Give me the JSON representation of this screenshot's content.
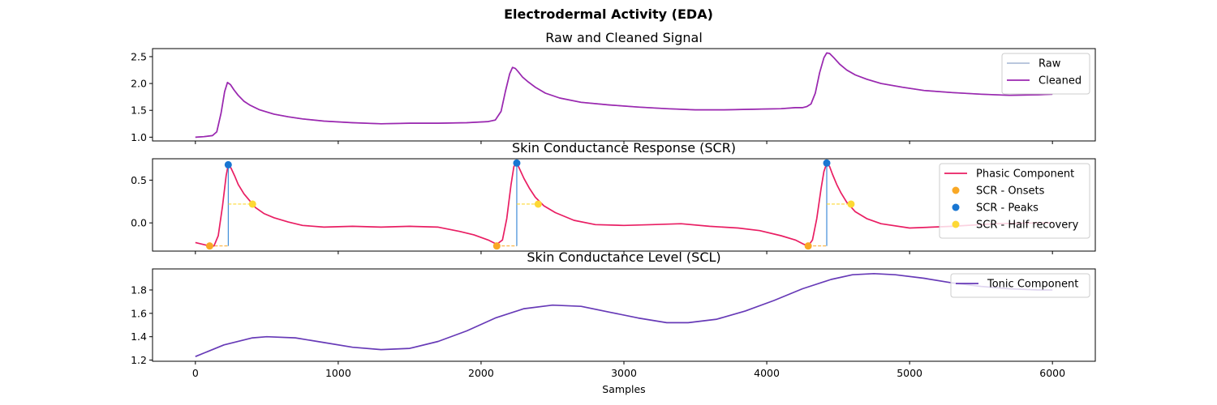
{
  "figure": {
    "title": "Electrodermal Activity (EDA)",
    "xlabel": "Samples"
  },
  "chart_data": [
    {
      "type": "line",
      "title": "Raw and Cleaned Signal",
      "xlim": [
        -300,
        6300
      ],
      "ylim": [
        0.93,
        2.65
      ],
      "yticks": [
        1.0,
        1.5,
        2.0,
        2.5
      ],
      "legend_position": "top-right",
      "series": [
        {
          "name": "Raw",
          "color": "#b0bfd8",
          "x": [
            0,
            60,
            120,
            150,
            180,
            205,
            225,
            245,
            270,
            300,
            340,
            380,
            450,
            550,
            650,
            750,
            900,
            1100,
            1300,
            1500,
            1700,
            1900,
            2050,
            2100,
            2140,
            2170,
            2200,
            2220,
            2240,
            2260,
            2290,
            2330,
            2380,
            2450,
            2550,
            2700,
            2900,
            3100,
            3300,
            3500,
            3700,
            3900,
            4100,
            4200,
            4250,
            4280,
            4310,
            4340,
            4370,
            4400,
            4420,
            4440,
            4470,
            4510,
            4560,
            4620,
            4700,
            4800,
            4950,
            5100,
            5300,
            5500,
            5700,
            5900,
            6000
          ],
          "y": [
            1.0,
            1.01,
            1.03,
            1.1,
            1.45,
            1.85,
            2.02,
            1.98,
            1.88,
            1.78,
            1.67,
            1.6,
            1.51,
            1.43,
            1.38,
            1.34,
            1.3,
            1.27,
            1.25,
            1.26,
            1.26,
            1.27,
            1.29,
            1.32,
            1.48,
            1.85,
            2.18,
            2.3,
            2.28,
            2.22,
            2.12,
            2.03,
            1.93,
            1.82,
            1.73,
            1.65,
            1.6,
            1.56,
            1.53,
            1.51,
            1.51,
            1.52,
            1.53,
            1.55,
            1.55,
            1.57,
            1.62,
            1.82,
            2.2,
            2.48,
            2.57,
            2.56,
            2.48,
            2.36,
            2.25,
            2.16,
            2.08,
            2.0,
            1.93,
            1.87,
            1.83,
            1.8,
            1.78,
            1.79,
            1.8
          ]
        },
        {
          "name": "Cleaned",
          "color": "#9c27b0",
          "x": [
            0,
            60,
            120,
            150,
            180,
            205,
            225,
            245,
            270,
            300,
            340,
            380,
            450,
            550,
            650,
            750,
            900,
            1100,
            1300,
            1500,
            1700,
            1900,
            2050,
            2100,
            2140,
            2170,
            2200,
            2220,
            2240,
            2260,
            2290,
            2330,
            2380,
            2450,
            2550,
            2700,
            2900,
            3100,
            3300,
            3500,
            3700,
            3900,
            4100,
            4200,
            4250,
            4280,
            4310,
            4340,
            4370,
            4400,
            4420,
            4440,
            4470,
            4510,
            4560,
            4620,
            4700,
            4800,
            4950,
            5100,
            5300,
            5500,
            5700,
            5900,
            6000
          ],
          "y": [
            1.0,
            1.01,
            1.03,
            1.1,
            1.45,
            1.85,
            2.02,
            1.98,
            1.88,
            1.78,
            1.67,
            1.6,
            1.51,
            1.43,
            1.38,
            1.34,
            1.3,
            1.27,
            1.25,
            1.26,
            1.26,
            1.27,
            1.29,
            1.32,
            1.48,
            1.85,
            2.18,
            2.3,
            2.28,
            2.22,
            2.12,
            2.03,
            1.93,
            1.82,
            1.73,
            1.65,
            1.6,
            1.56,
            1.53,
            1.51,
            1.51,
            1.52,
            1.53,
            1.55,
            1.55,
            1.57,
            1.62,
            1.82,
            2.2,
            2.48,
            2.57,
            2.56,
            2.48,
            2.36,
            2.25,
            2.16,
            2.08,
            2.0,
            1.93,
            1.87,
            1.83,
            1.8,
            1.78,
            1.79,
            1.8
          ]
        }
      ]
    },
    {
      "type": "line",
      "title": "Skin Conductance Response (SCR)",
      "xlim": [
        -300,
        6300
      ],
      "ylim": [
        -0.33,
        0.75
      ],
      "yticks": [
        0.0,
        0.5
      ],
      "legend_position": "top-right",
      "series": [
        {
          "name": "Phasic Component",
          "color": "#e91e63",
          "x": [
            0,
            50,
            100,
            130,
            160,
            190,
            215,
            230,
            250,
            275,
            300,
            340,
            380,
            420,
            480,
            550,
            650,
            750,
            900,
            1100,
            1300,
            1500,
            1700,
            1850,
            1950,
            2050,
            2110,
            2150,
            2180,
            2210,
            2230,
            2250,
            2270,
            2300,
            2340,
            2380,
            2440,
            2520,
            2650,
            2800,
            3000,
            3200,
            3400,
            3600,
            3800,
            3950,
            4100,
            4200,
            4260,
            4290,
            4320,
            4350,
            4380,
            4400,
            4420,
            4440,
            4460,
            4490,
            4520,
            4560,
            4620,
            4700,
            4800,
            5000,
            5300,
            5600,
            5900,
            6000
          ],
          "y": [
            -0.23,
            -0.25,
            -0.27,
            -0.27,
            -0.15,
            0.2,
            0.55,
            0.68,
            0.64,
            0.55,
            0.45,
            0.34,
            0.26,
            0.18,
            0.11,
            0.06,
            0.01,
            -0.03,
            -0.05,
            -0.04,
            -0.05,
            -0.04,
            -0.05,
            -0.1,
            -0.14,
            -0.2,
            -0.25,
            -0.2,
            0.05,
            0.45,
            0.66,
            0.7,
            0.63,
            0.52,
            0.4,
            0.3,
            0.2,
            0.12,
            0.03,
            -0.02,
            -0.03,
            -0.02,
            -0.01,
            -0.04,
            -0.06,
            -0.09,
            -0.15,
            -0.2,
            -0.25,
            -0.27,
            -0.2,
            0.05,
            0.4,
            0.6,
            0.7,
            0.66,
            0.57,
            0.45,
            0.35,
            0.24,
            0.13,
            0.05,
            -0.01,
            -0.06,
            -0.04,
            -0.01,
            0.0,
            0.0
          ]
        }
      ],
      "onsets": {
        "name": "SCR - Onsets",
        "color": "#f9a825",
        "x": [
          100,
          2110,
          4290
        ],
        "y": [
          -0.27,
          -0.27,
          -0.27
        ]
      },
      "peaks": {
        "name": "SCR - Peaks",
        "color": "#1976d2",
        "x": [
          230,
          2250,
          4420
        ],
        "y": [
          0.68,
          0.7,
          0.7
        ]
      },
      "half_recovery": {
        "name": "SCR - Half recovery",
        "color": "#fdd835",
        "x": [
          400,
          2400,
          4590
        ],
        "y": [
          0.22,
          0.22,
          0.22
        ]
      }
    },
    {
      "type": "line",
      "title": "Skin Conductance Level (SCL)",
      "xlim": [
        -300,
        6300
      ],
      "ylim": [
        1.19,
        1.98
      ],
      "yticks": [
        1.2,
        1.4,
        1.6,
        1.8
      ],
      "xticks": [
        0,
        1000,
        2000,
        3000,
        4000,
        5000,
        6000
      ],
      "legend_position": "top-right",
      "series": [
        {
          "name": "Tonic Component",
          "color": "#673ab7",
          "x": [
            0,
            200,
            400,
            500,
            700,
            900,
            1100,
            1300,
            1500,
            1700,
            1900,
            2100,
            2300,
            2500,
            2700,
            2900,
            3100,
            3300,
            3450,
            3650,
            3850,
            4050,
            4250,
            4450,
            4600,
            4750,
            4900,
            5100,
            5300,
            5500,
            5700,
            5900,
            6000
          ],
          "y": [
            1.23,
            1.33,
            1.39,
            1.4,
            1.39,
            1.35,
            1.31,
            1.29,
            1.3,
            1.36,
            1.45,
            1.56,
            1.64,
            1.67,
            1.66,
            1.61,
            1.56,
            1.52,
            1.52,
            1.55,
            1.62,
            1.71,
            1.81,
            1.89,
            1.93,
            1.94,
            1.93,
            1.9,
            1.86,
            1.83,
            1.81,
            1.8,
            1.8
          ]
        }
      ]
    }
  ]
}
